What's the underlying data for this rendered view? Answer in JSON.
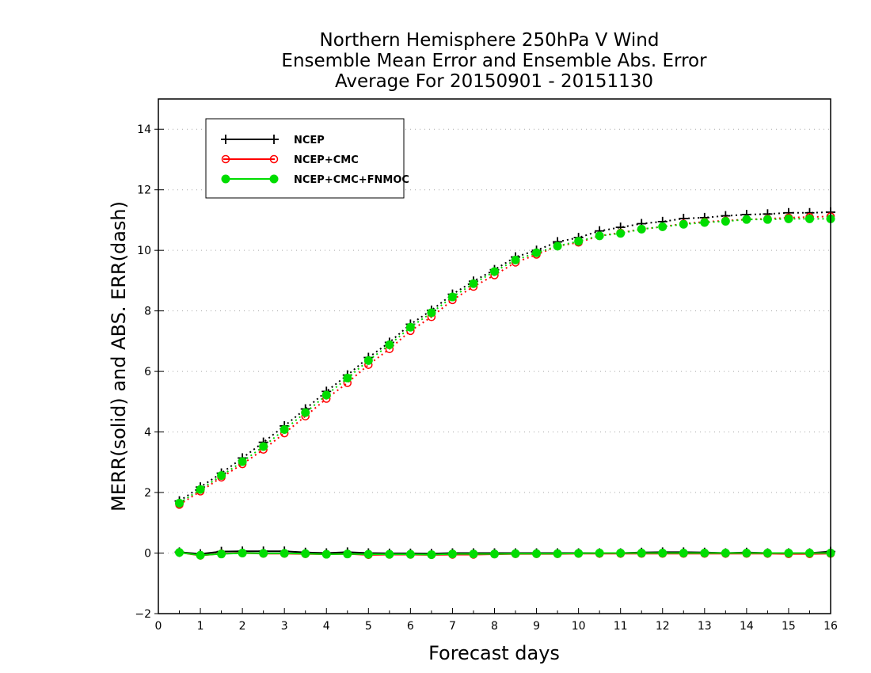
{
  "chart_data": {
    "type": "line",
    "title": [
      "Northern Hemisphere 250hPa V Wind",
      "Ensemble Mean Error and Ensemble Abs. Error",
      "Average For 20150901 - 20151130"
    ],
    "xlabel": "Forecast days",
    "ylabel": "MERR(solid) and ABS. ERR(dash)",
    "xlim": [
      0,
      16
    ],
    "ylim": [
      -2,
      15
    ],
    "xticks": [
      0,
      1,
      2,
      3,
      4,
      5,
      6,
      7,
      8,
      9,
      10,
      11,
      12,
      13,
      14,
      15,
      16
    ],
    "yticks": [
      -2,
      0,
      2,
      4,
      6,
      8,
      10,
      12,
      14
    ],
    "grid": "horizontal dotted",
    "legend_position": "top-left",
    "x": [
      0.5,
      1,
      1.5,
      2,
      2.5,
      3,
      3.5,
      4,
      4.5,
      5,
      5.5,
      6,
      6.5,
      7,
      7.5,
      8,
      8.5,
      9,
      9.5,
      10,
      10.5,
      11,
      11.5,
      12,
      12.5,
      13,
      13.5,
      14,
      14.5,
      15,
      15.5,
      16
    ],
    "series": [
      {
        "name": "NCEP",
        "color": "#000000",
        "marker": "plus",
        "abs_err": [
          1.72,
          2.18,
          2.64,
          3.14,
          3.66,
          4.2,
          4.76,
          5.34,
          5.88,
          6.46,
          6.96,
          7.56,
          8.02,
          8.55,
          8.98,
          9.36,
          9.78,
          10.0,
          10.28,
          10.42,
          10.64,
          10.76,
          10.88,
          10.95,
          11.05,
          11.08,
          11.14,
          11.18,
          11.2,
          11.24,
          11.24,
          11.26
        ],
        "mean_err": [
          0.03,
          -0.03,
          0.05,
          0.06,
          0.06,
          0.06,
          0.02,
          0.0,
          0.03,
          0.0,
          -0.01,
          -0.01,
          -0.02,
          0.0,
          0.0,
          0.0,
          0.0,
          0.0,
          0.0,
          0.0,
          0.0,
          0.0,
          0.02,
          0.03,
          0.03,
          0.02,
          0.0,
          0.02,
          0.0,
          0.0,
          0.0,
          0.05
        ]
      },
      {
        "name": "NCEP+CMC",
        "color": "#ff0000",
        "marker": "open-circle",
        "abs_err": [
          1.6,
          2.04,
          2.5,
          2.94,
          3.42,
          3.96,
          4.52,
          5.1,
          5.62,
          6.22,
          6.74,
          7.34,
          7.8,
          8.36,
          8.8,
          9.18,
          9.6,
          9.86,
          10.14,
          10.26,
          10.48,
          10.58,
          10.7,
          10.78,
          10.88,
          10.94,
          10.98,
          11.02,
          11.04,
          11.08,
          11.1,
          11.12
        ],
        "mean_err": [
          0.02,
          -0.08,
          -0.02,
          0.0,
          -0.02,
          -0.02,
          -0.03,
          -0.04,
          -0.03,
          -0.06,
          -0.05,
          -0.05,
          -0.06,
          -0.05,
          -0.05,
          -0.04,
          -0.03,
          -0.03,
          -0.03,
          -0.02,
          -0.02,
          -0.02,
          -0.02,
          -0.02,
          -0.02,
          -0.02,
          -0.02,
          -0.02,
          -0.02,
          -0.03,
          -0.03,
          -0.02
        ]
      },
      {
        "name": "NCEP+CMC+FNMOC",
        "color": "#00dd00",
        "marker": "filled-circle",
        "abs_err": [
          1.65,
          2.1,
          2.56,
          3.02,
          3.52,
          4.08,
          4.64,
          5.22,
          5.78,
          6.36,
          6.88,
          7.46,
          7.94,
          8.46,
          8.9,
          9.3,
          9.68,
          9.92,
          10.14,
          10.3,
          10.48,
          10.56,
          10.7,
          10.78,
          10.86,
          10.92,
          10.96,
          11.02,
          11.02,
          11.04,
          11.04,
          11.04
        ],
        "mean_err": [
          0.02,
          -0.07,
          -0.03,
          0.0,
          -0.01,
          -0.01,
          -0.02,
          -0.04,
          -0.03,
          -0.04,
          -0.04,
          -0.04,
          -0.05,
          -0.03,
          -0.03,
          -0.03,
          -0.02,
          -0.02,
          -0.02,
          -0.01,
          0.0,
          0.0,
          0.0,
          0.0,
          0.0,
          0.0,
          0.0,
          0.0,
          0.0,
          0.0,
          0.0,
          0.0
        ]
      }
    ]
  }
}
